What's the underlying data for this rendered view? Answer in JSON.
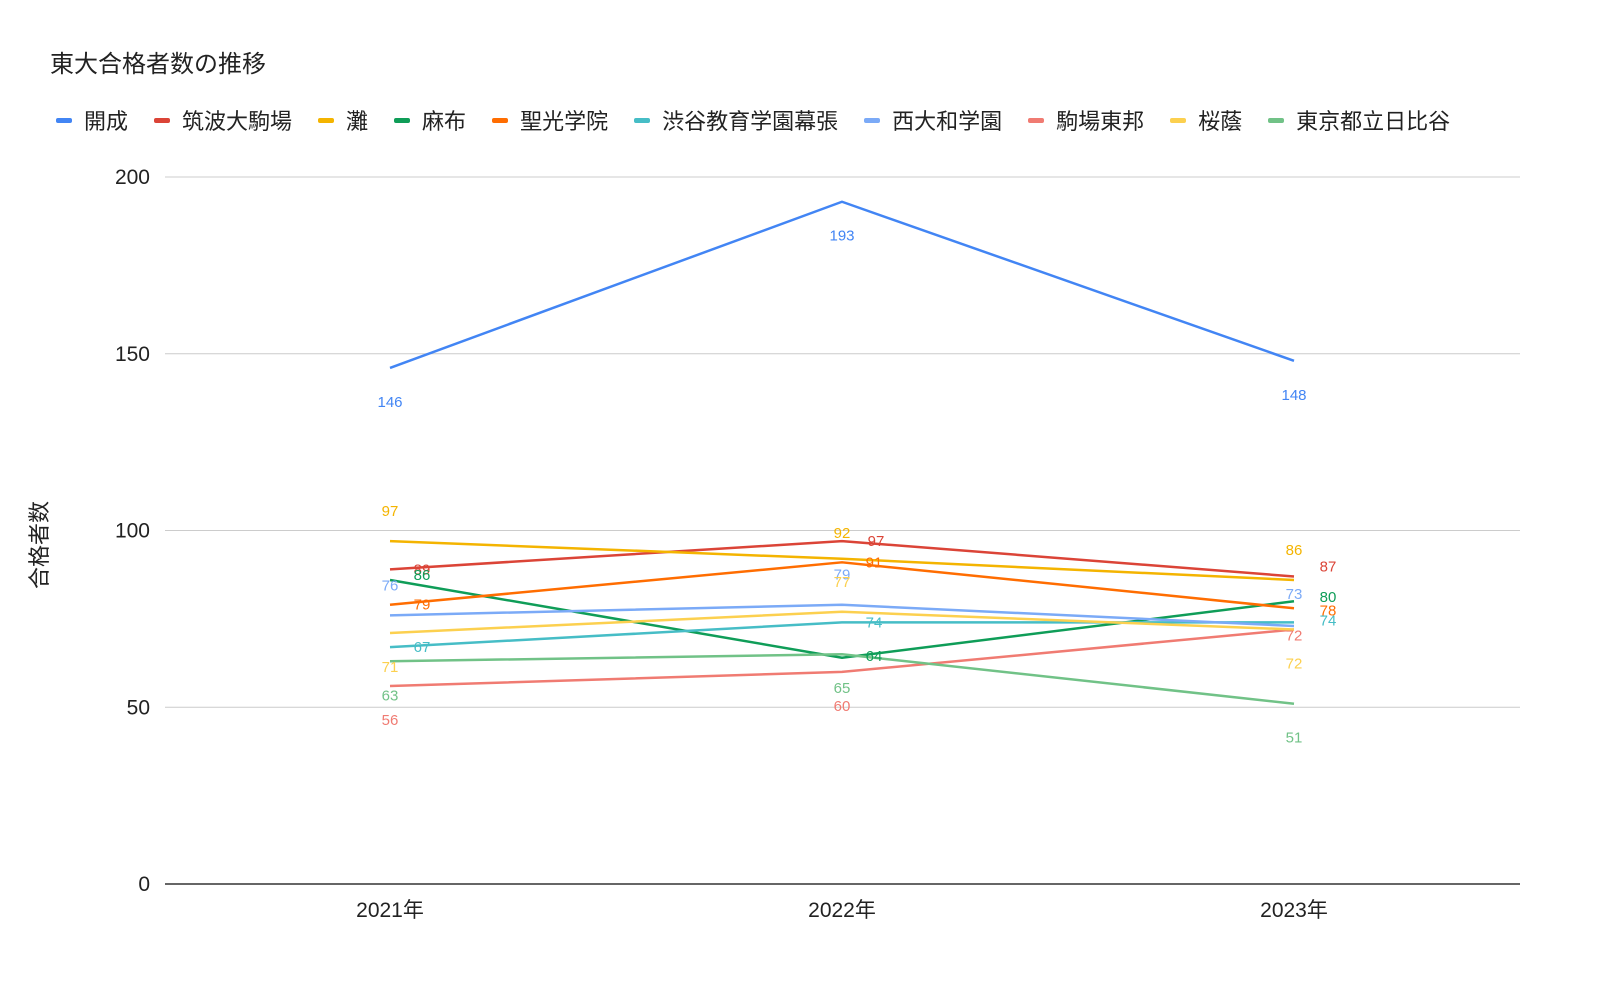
{
  "chart_data": {
    "type": "line",
    "title": "東大合格者数の推移",
    "xlabel": "",
    "ylabel": "合格者数",
    "categories": [
      "2021年",
      "2022年",
      "2023年"
    ],
    "ylim": [
      0,
      200
    ],
    "yticks": [
      "0",
      "50",
      "100",
      "150",
      "200"
    ],
    "grid": true,
    "legend_position": "top",
    "series": [
      {
        "name": "開成",
        "color": "#4285F4",
        "values": [
          146,
          193,
          148
        ]
      },
      {
        "name": "筑波大駒場",
        "color": "#DB4437",
        "values": [
          89,
          97,
          87
        ]
      },
      {
        "name": "灘",
        "color": "#F4B400",
        "values": [
          97,
          92,
          86
        ]
      },
      {
        "name": "麻布",
        "color": "#0F9D58",
        "values": [
          86,
          64,
          80
        ]
      },
      {
        "name": "聖光学院",
        "color": "#FF6D01",
        "values": [
          79,
          91,
          78
        ]
      },
      {
        "name": "渋谷教育学園幕張",
        "color": "#46BDC6",
        "values": [
          67,
          74,
          74
        ]
      },
      {
        "name": "西大和学園",
        "color": "#7BAAF7",
        "values": [
          76,
          79,
          73
        ]
      },
      {
        "name": "駒場東邦",
        "color": "#F07B72",
        "values": [
          56,
          60,
          72
        ]
      },
      {
        "name": "桜蔭",
        "color": "#FCD04F",
        "values": [
          71,
          77,
          72
        ]
      },
      {
        "name": "東京都立日比谷",
        "color": "#71C287",
        "values": [
          63,
          65,
          51
        ]
      }
    ]
  }
}
